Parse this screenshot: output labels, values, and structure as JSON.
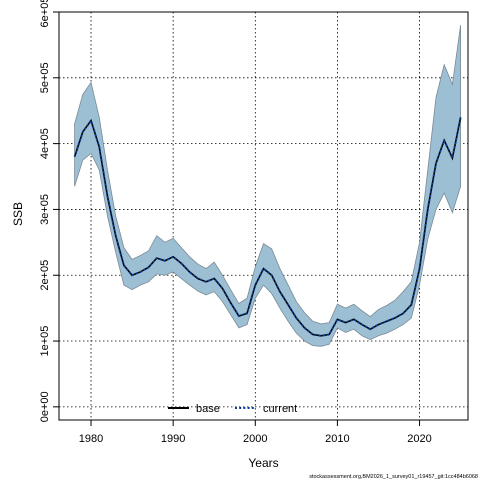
{
  "chart_data": {
    "type": "line",
    "xlabel": "Years",
    "ylabel": "SSB",
    "xlim": [
      1976.1,
      2025.9
    ],
    "ylim": [
      -20000,
      600000
    ],
    "x_ticks": [
      1980,
      1990,
      2000,
      2010,
      2020
    ],
    "y_ticks": [
      0,
      100000,
      200000,
      300000,
      400000,
      500000,
      600000
    ],
    "y_tick_labels": [
      "0e+00",
      "1e+05",
      "2e+05",
      "3e+05",
      "4e+05",
      "5e+05",
      "6e+05"
    ],
    "grid": true,
    "legend_position": "bottom-center",
    "legend": [
      {
        "label": "base",
        "style": "solid",
        "color": "#000000"
      },
      {
        "label": "current",
        "style": "dotted",
        "color": "#0b3d91"
      }
    ],
    "band_color": "#9dbfd3",
    "band_edge_color": "#7a8a96",
    "years": [
      1978,
      1979,
      1980,
      1981,
      1982,
      1983,
      1984,
      1985,
      1986,
      1987,
      1988,
      1989,
      1990,
      1991,
      1992,
      1993,
      1994,
      1995,
      1996,
      1997,
      1998,
      1999,
      2000,
      2001,
      2002,
      2003,
      2004,
      2005,
      2006,
      2007,
      2008,
      2009,
      2010,
      2011,
      2012,
      2013,
      2014,
      2015,
      2016,
      2017,
      2018,
      2019,
      2020,
      2021,
      2022,
      2023,
      2024,
      2025
    ],
    "series": [
      {
        "name": "current",
        "values": [
          380000,
          418000,
          435000,
          395000,
          320000,
          260000,
          215000,
          200000,
          205000,
          212000,
          226000,
          222000,
          228000,
          218000,
          205000,
          195000,
          190000,
          195000,
          180000,
          158000,
          138000,
          142000,
          185000,
          210000,
          200000,
          175000,
          155000,
          135000,
          120000,
          110000,
          108000,
          110000,
          133000,
          128000,
          133000,
          125000,
          118000,
          125000,
          130000,
          135000,
          142000,
          155000,
          210000,
          300000,
          370000,
          405000,
          378000,
          440000
        ]
      },
      {
        "name": "current_lower",
        "values": [
          335000,
          375000,
          385000,
          360000,
          290000,
          235000,
          185000,
          178000,
          185000,
          190000,
          202000,
          200000,
          205000,
          195000,
          185000,
          176000,
          170000,
          175000,
          160000,
          140000,
          120000,
          125000,
          165000,
          185000,
          172000,
          150000,
          130000,
          112000,
          100000,
          93000,
          92000,
          95000,
          120000,
          113000,
          118000,
          108000,
          102000,
          108000,
          112000,
          118000,
          125000,
          135000,
          185000,
          255000,
          300000,
          325000,
          295000,
          335000
        ]
      },
      {
        "name": "current_upper",
        "values": [
          430000,
          475000,
          493000,
          440000,
          360000,
          290000,
          242000,
          224000,
          230000,
          237000,
          260000,
          250000,
          256000,
          242000,
          228000,
          217000,
          210000,
          220000,
          200000,
          178000,
          157000,
          165000,
          213000,
          248000,
          240000,
          210000,
          185000,
          160000,
          143000,
          130000,
          126000,
          128000,
          156000,
          150000,
          156000,
          146000,
          137000,
          148000,
          154000,
          162000,
          175000,
          190000,
          250000,
          360000,
          470000,
          520000,
          490000,
          580000
        ]
      }
    ]
  },
  "watermark": "stockassessment.org,BM2026_1_survey01_r19457_git:1cc484b6068"
}
